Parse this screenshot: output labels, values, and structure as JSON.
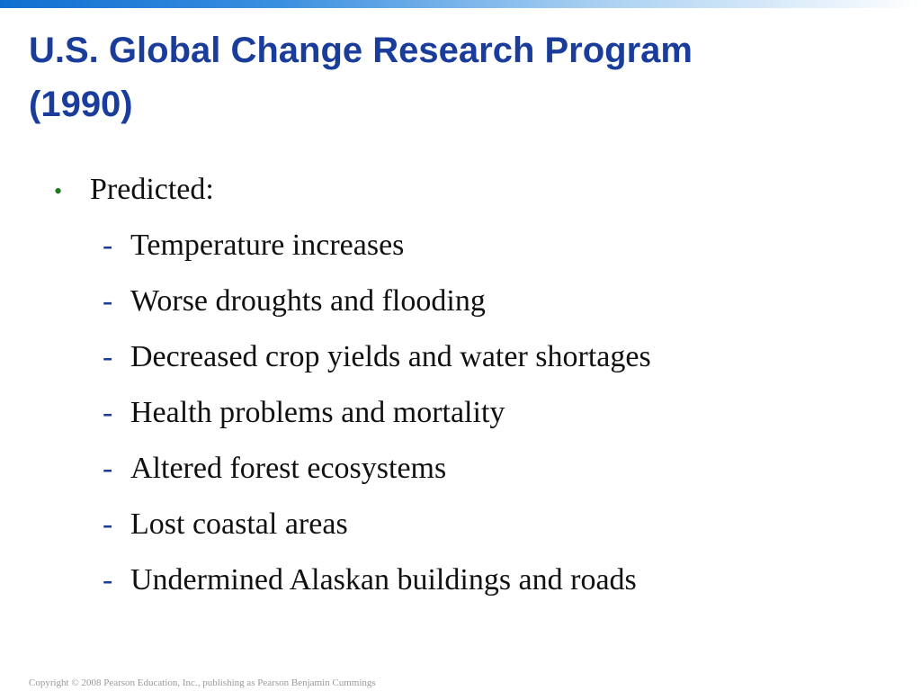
{
  "slide": {
    "title_line1": "U.S. Global Change Research Program",
    "title_line2": "(1990)",
    "bullet": {
      "marker": "•",
      "label": "Predicted:"
    },
    "sub_marker": "-",
    "sub_items": [
      "Temperature increases",
      "Worse droughts and flooding",
      "Decreased crop yields and water shortages",
      "Health problems and mortality",
      "Altered forest ecosystems",
      "Lost coastal areas",
      "Undermined Alaskan buildings and roads"
    ],
    "footer": "Copyright © 2008 Pearson Education, Inc., publishing as Pearson Benjamin Cummings"
  },
  "colors": {
    "title": "#1a3d9c",
    "bullet_marker": "#1f7a1f",
    "dash": "#1a3d9c",
    "body_text": "#111111",
    "footer": "#9a9a9a",
    "top_bar_start": "#0f6fd0"
  }
}
